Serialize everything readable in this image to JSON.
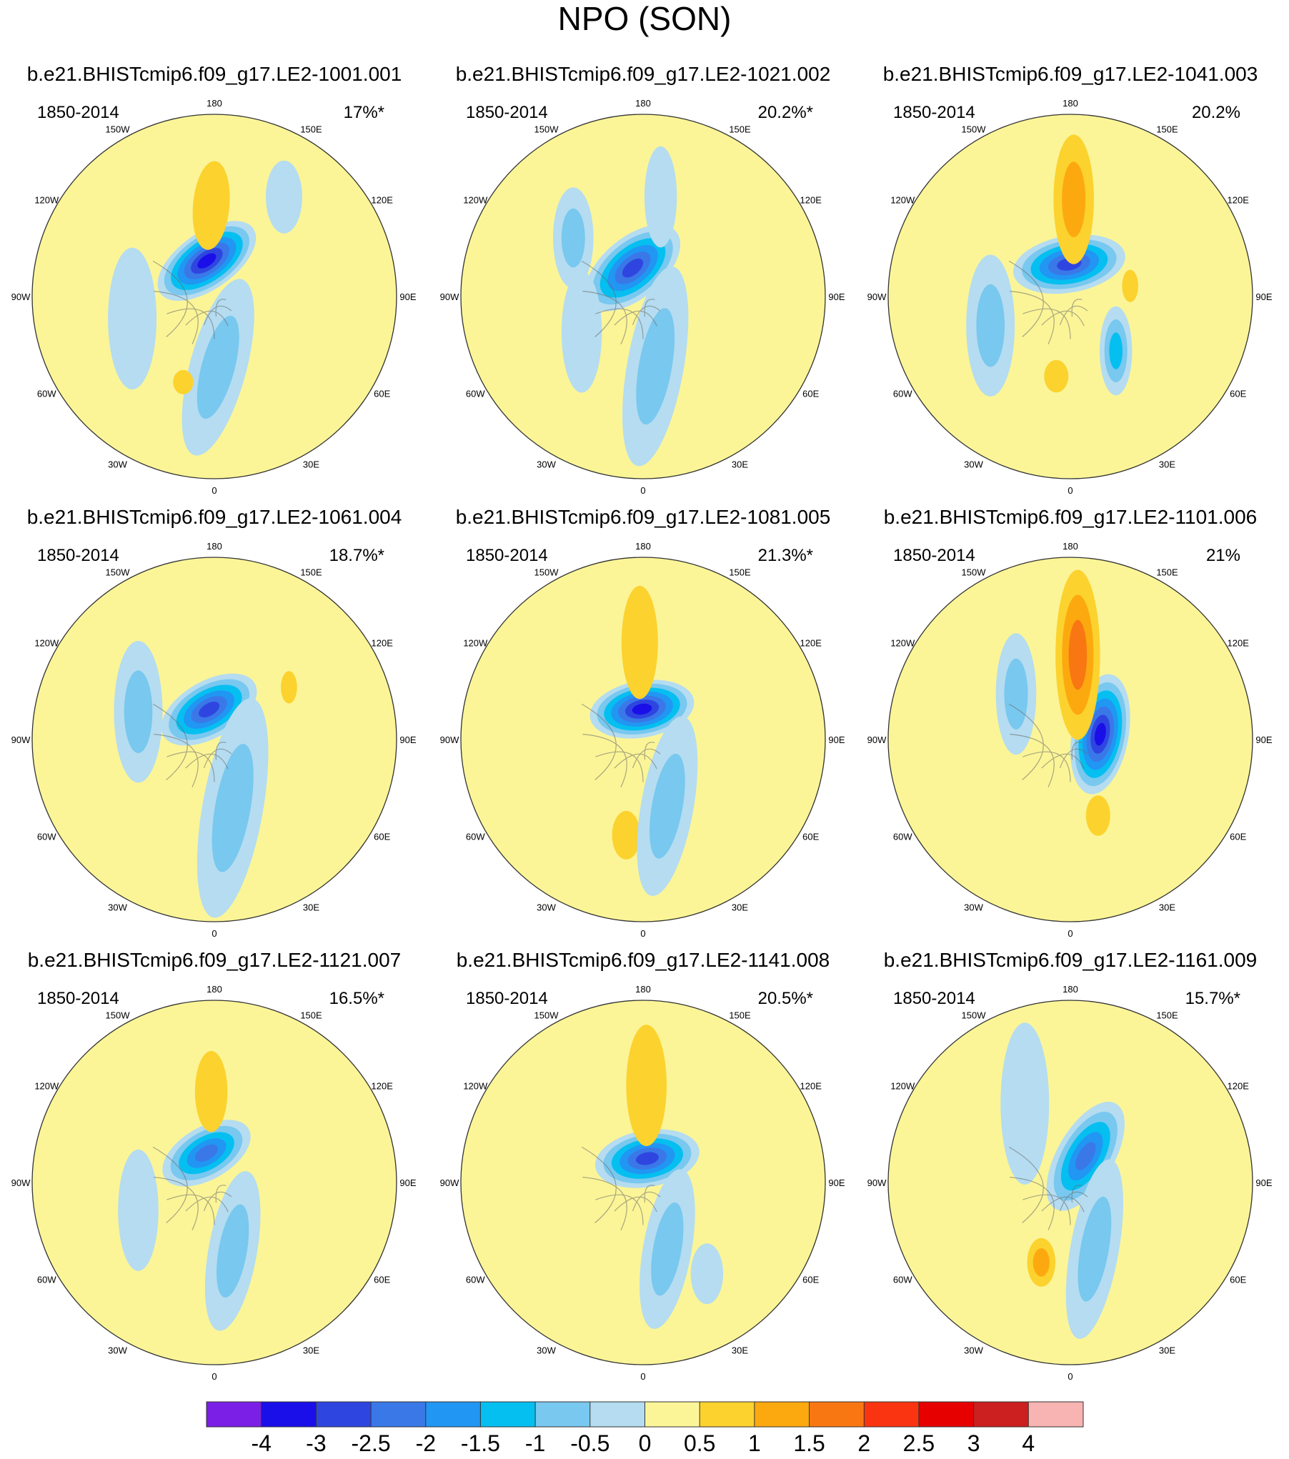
{
  "chart_data": {
    "type": "heatmap",
    "projection": "north-polar-stereographic",
    "title": "NPO (SON)",
    "period_label": "1850-2014",
    "longitude_labels": [
      "180",
      "150E",
      "120E",
      "90E",
      "60E",
      "30E",
      "0",
      "30W",
      "60W",
      "90W",
      "120W",
      "150W"
    ],
    "colorbar": {
      "colors": [
        "#7b1fe6",
        "#1a0fe8",
        "#2f45e0",
        "#3a78e8",
        "#2196f3",
        "#05bff0",
        "#78c8ef",
        "#b5dcf0",
        "#fbf598",
        "#fcd22e",
        "#fca90f",
        "#f97712",
        "#fa3410",
        "#e60000",
        "#cc1f1f",
        "#f8b3b3"
      ],
      "levels": [
        "-4",
        "-3",
        "-2.5",
        "-2",
        "-1.5",
        "-1",
        "-0.5",
        "0",
        "0.5",
        "1",
        "1.5",
        "2",
        "2.5",
        "3",
        "4"
      ]
    },
    "panels": [
      {
        "name": "b.e21.BHISTcmip6.f09_g17.LE2-1001.001",
        "pct": "17%*",
        "anomalies": [
          {
            "lat": 72,
            "lon": -168,
            "value": -3.0,
            "rx": 14,
            "ry": 28,
            "rot": 55
          },
          {
            "lat": 45,
            "lon": -178,
            "value": 0.7,
            "rx": 9,
            "ry": 22,
            "rot": 5
          },
          {
            "lat": 55,
            "lon": 3,
            "value": -0.8,
            "rx": 14,
            "ry": 45,
            "rot": 15
          },
          {
            "lat": 45,
            "lon": -20,
            "value": 0.7,
            "rx": 5,
            "ry": 6,
            "rot": 0
          },
          {
            "lat": 30,
            "lon": 145,
            "value": -0.4,
            "rx": 9,
            "ry": 18,
            "rot": 0
          },
          {
            "lat": 48,
            "lon": -75,
            "value": -0.4,
            "rx": 12,
            "ry": 35,
            "rot": 0
          }
        ]
      },
      {
        "name": "b.e21.BHISTcmip6.f09_g17.LE2-1021.002",
        "pct": "20.2%*",
        "anomalies": [
          {
            "lat": 75,
            "lon": -160,
            "value": -2.5,
            "rx": 15,
            "ry": 28,
            "rot": 50
          },
          {
            "lat": 40,
            "lon": 170,
            "value": -0.4,
            "rx": 8,
            "ry": 25,
            "rot": 0
          },
          {
            "lat": 55,
            "lon": 10,
            "value": -0.6,
            "rx": 14,
            "ry": 50,
            "rot": 10
          },
          {
            "lat": 55,
            "lon": -60,
            "value": -0.4,
            "rx": 10,
            "ry": 30,
            "rot": 0
          },
          {
            "lat": 45,
            "lon": -130,
            "value": -0.7,
            "rx": 10,
            "ry": 25,
            "rot": 0
          }
        ]
      },
      {
        "name": "b.e21.BHISTcmip6.f09_g17.LE2-1041.003",
        "pct": "20.2%",
        "anomalies": [
          {
            "lat": 74,
            "lon": -178,
            "value": -2.6,
            "rx": 14,
            "ry": 28,
            "rot": 80
          },
          {
            "lat": 42,
            "lon": 178,
            "value": 1.2,
            "rx": 10,
            "ry": 32,
            "rot": 0
          },
          {
            "lat": 55,
            "lon": 40,
            "value": -1.1,
            "rx": 8,
            "ry": 22,
            "rot": 0
          },
          {
            "lat": 50,
            "lon": -10,
            "value": 0.7,
            "rx": 6,
            "ry": 8,
            "rot": 0
          },
          {
            "lat": 60,
            "lon": 100,
            "value": 0.6,
            "rx": 4,
            "ry": 8,
            "rot": 0
          },
          {
            "lat": 48,
            "lon": -70,
            "value": -0.5,
            "rx": 12,
            "ry": 35,
            "rot": 0
          }
        ]
      },
      {
        "name": "b.e21.BHISTcmip6.f09_g17.LE2-1061.004",
        "pct": "18.7%*",
        "anomalies": [
          {
            "lat": 75,
            "lon": -170,
            "value": -2.6,
            "rx": 14,
            "ry": 26,
            "rot": 60
          },
          {
            "lat": 55,
            "lon": 15,
            "value": -0.6,
            "rx": 15,
            "ry": 55,
            "rot": 10
          },
          {
            "lat": 45,
            "lon": 125,
            "value": 0.7,
            "rx": 4,
            "ry": 8,
            "rot": 0
          },
          {
            "lat": 50,
            "lon": -110,
            "value": -0.5,
            "rx": 12,
            "ry": 35,
            "rot": 0
          }
        ]
      },
      {
        "name": "b.e21.BHISTcmip6.f09_g17.LE2-1081.005",
        "pct": "21.3%*",
        "anomalies": [
          {
            "lat": 75,
            "lon": -178,
            "value": -3.1,
            "rx": 14,
            "ry": 26,
            "rot": 80
          },
          {
            "lat": 42,
            "lon": -178,
            "value": 0.8,
            "rx": 9,
            "ry": 28,
            "rot": 0
          },
          {
            "lat": 42,
            "lon": -10,
            "value": 0.8,
            "rx": 7,
            "ry": 12,
            "rot": 0
          },
          {
            "lat": 55,
            "lon": 20,
            "value": -0.6,
            "rx": 13,
            "ry": 45,
            "rot": 10
          }
        ]
      },
      {
        "name": "b.e21.BHISTcmip6.f09_g17.LE2-1101.006",
        "pct": "21%",
        "anomalies": [
          {
            "lat": 75,
            "lon": 100,
            "value": -3.0,
            "rx": 14,
            "ry": 30,
            "rot": 10
          },
          {
            "lat": 48,
            "lon": 175,
            "value": 1.6,
            "rx": 11,
            "ry": 42,
            "rot": 0
          },
          {
            "lat": 50,
            "lon": 20,
            "value": 0.7,
            "rx": 6,
            "ry": 10,
            "rot": 0
          },
          {
            "lat": 55,
            "lon": -130,
            "value": -0.5,
            "rx": 10,
            "ry": 30,
            "rot": 0
          }
        ]
      },
      {
        "name": "b.e21.BHISTcmip6.f09_g17.LE2-1121.007",
        "pct": "16.5%*",
        "anomalies": [
          {
            "lat": 75,
            "lon": -165,
            "value": -2.2,
            "rx": 13,
            "ry": 24,
            "rot": 60
          },
          {
            "lat": 45,
            "lon": -178,
            "value": 0.7,
            "rx": 8,
            "ry": 20,
            "rot": 0
          },
          {
            "lat": 55,
            "lon": 15,
            "value": -0.6,
            "rx": 12,
            "ry": 40,
            "rot": 10
          },
          {
            "lat": 50,
            "lon": -70,
            "value": -0.4,
            "rx": 10,
            "ry": 30,
            "rot": 0
          }
        ]
      },
      {
        "name": "b.e21.BHISTcmip6.f09_g17.LE2-1141.008",
        "pct": "20.5%*",
        "anomalies": [
          {
            "lat": 78,
            "lon": 170,
            "value": -2.6,
            "rx": 14,
            "ry": 26,
            "rot": 80
          },
          {
            "lat": 42,
            "lon": 178,
            "value": 0.8,
            "rx": 10,
            "ry": 30,
            "rot": 0
          },
          {
            "lat": 55,
            "lon": 20,
            "value": -0.6,
            "rx": 12,
            "ry": 40,
            "rot": 10
          },
          {
            "lat": 35,
            "lon": 35,
            "value": -0.4,
            "rx": 8,
            "ry": 15,
            "rot": 0
          }
        ]
      },
      {
        "name": "b.e21.BHISTcmip6.f09_g17.LE2-1161.009",
        "pct": "15.7%*",
        "anomalies": [
          {
            "lat": 75,
            "lon": 150,
            "value": -2.4,
            "rx": 14,
            "ry": 30,
            "rot": 30
          },
          {
            "lat": 48,
            "lon": -20,
            "value": 1.0,
            "rx": 7,
            "ry": 12,
            "rot": 0
          },
          {
            "lat": 55,
            "lon": 20,
            "value": -0.6,
            "rx": 12,
            "ry": 45,
            "rot": 10
          },
          {
            "lat": 45,
            "lon": -150,
            "value": -0.4,
            "rx": 12,
            "ry": 40,
            "rot": 0
          }
        ]
      }
    ]
  }
}
